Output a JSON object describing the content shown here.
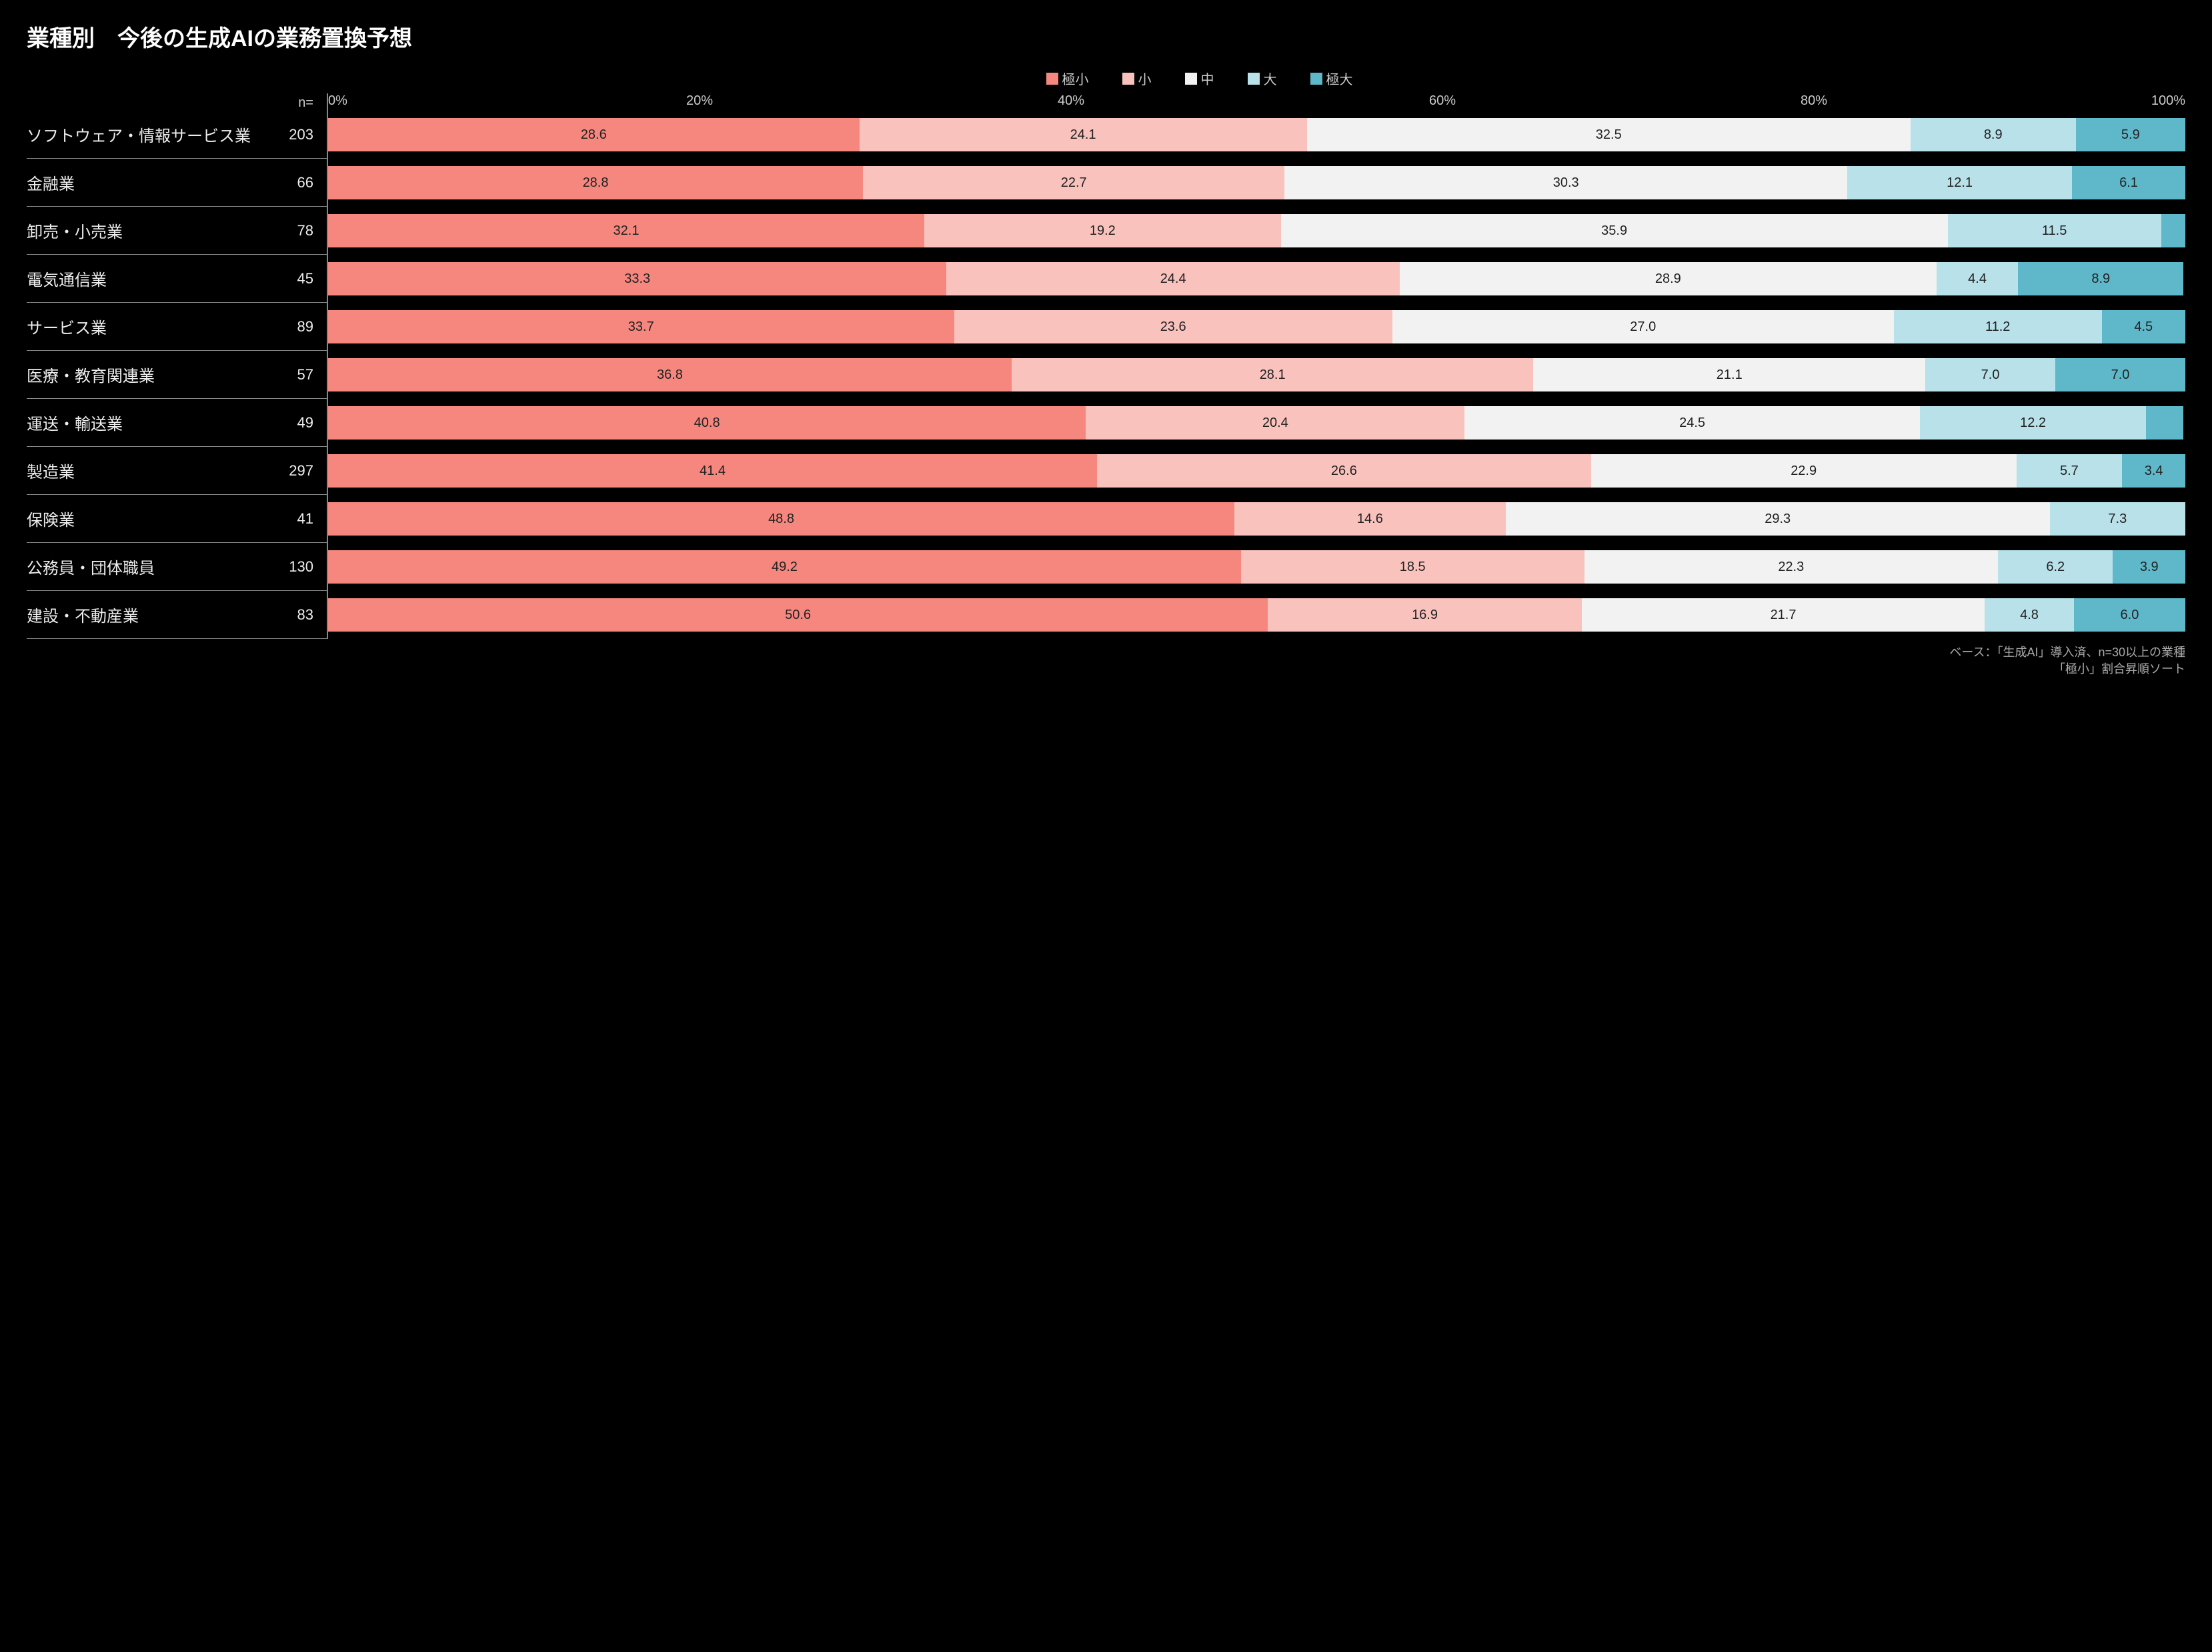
{
  "title": "業種別　今後の生成AIの業務置換予想",
  "n_header": "n=",
  "legend": [
    {
      "label": "極小",
      "color": "#f5877f"
    },
    {
      "label": "小",
      "color": "#f9c2bd"
    },
    {
      "label": "中",
      "color": "#f2f2f2"
    },
    {
      "label": "大",
      "color": "#b9e1ea"
    },
    {
      "label": "極大",
      "color": "#5fb8c9"
    }
  ],
  "axis": {
    "ticks": [
      0,
      20,
      40,
      60,
      80,
      100
    ],
    "suffix": "%"
  },
  "segment_text_color": "#222222",
  "segment_min_label_pct": 3.0,
  "rows": [
    {
      "label": "ソフトウェア・情報サービス業",
      "n": 203,
      "values": [
        28.6,
        24.1,
        32.5,
        8.9,
        5.9
      ]
    },
    {
      "label": "金融業",
      "n": 66,
      "values": [
        28.8,
        22.7,
        30.3,
        12.1,
        6.1
      ]
    },
    {
      "label": "卸売・小売業",
      "n": 78,
      "values": [
        32.1,
        19.2,
        35.9,
        11.5,
        1.3
      ]
    },
    {
      "label": "電気通信業",
      "n": 45,
      "values": [
        33.3,
        24.4,
        28.9,
        4.4,
        8.9
      ]
    },
    {
      "label": "サービス業",
      "n": 89,
      "values": [
        33.7,
        23.6,
        27.0,
        11.2,
        4.5
      ]
    },
    {
      "label": "医療・教育関連業",
      "n": 57,
      "values": [
        36.8,
        28.1,
        21.1,
        7.0,
        7.0
      ]
    },
    {
      "label": "運送・輸送業",
      "n": 49,
      "values": [
        40.8,
        20.4,
        24.5,
        12.2,
        2.0
      ]
    },
    {
      "label": "製造業",
      "n": 297,
      "values": [
        41.4,
        26.6,
        22.9,
        5.7,
        3.4
      ]
    },
    {
      "label": "保険業",
      "n": 41,
      "values": [
        48.8,
        14.6,
        29.3,
        7.3,
        0.0
      ]
    },
    {
      "label": "公務員・団体職員",
      "n": 130,
      "values": [
        49.2,
        18.5,
        22.3,
        6.2,
        3.9
      ]
    },
    {
      "label": "建設・不動産業",
      "n": 83,
      "values": [
        50.6,
        16.9,
        21.7,
        4.8,
        6.0
      ]
    }
  ],
  "footnote_line1": "ベース：「生成AI」導入済、n=30以上の業種",
  "footnote_line2": "「極小」割合昇順ソート"
}
